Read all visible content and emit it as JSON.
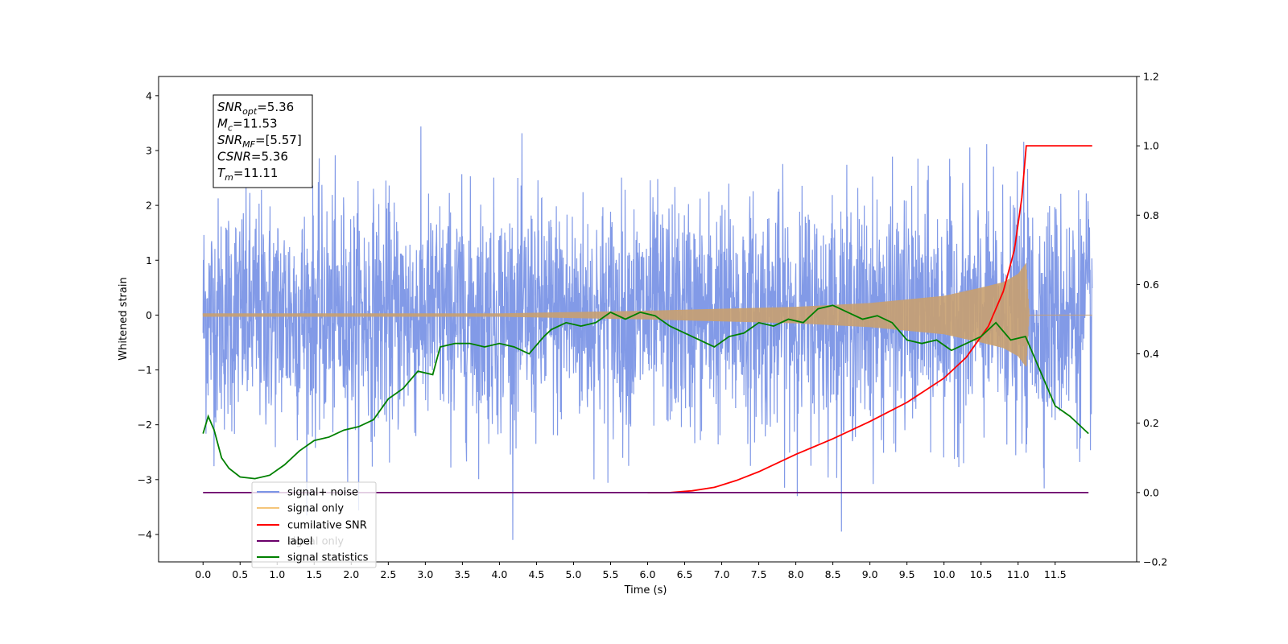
{
  "chart_data": {
    "type": "line",
    "xlabel": "Time (s)",
    "ylabel": "Whitened strain",
    "xlim": [
      -0.6,
      12.6
    ],
    "ylim": [
      -4.5,
      4.35
    ],
    "y2lim": [
      -0.2,
      1.2
    ],
    "x_ticks": [
      "0.0",
      "0.5",
      "1.0",
      "1.5",
      "2.0",
      "2.5",
      "3.0",
      "3.5",
      "4.0",
      "4.5",
      "5.0",
      "5.5",
      "6.0",
      "6.5",
      "7.0",
      "7.5",
      "8.0",
      "8.5",
      "9.0",
      "9.5",
      "10.0",
      "10.5",
      "11.0",
      "11.5"
    ],
    "y_ticks": [
      "4",
      "3",
      "2",
      "1",
      "0",
      "−1",
      "−2",
      "−3",
      "−4"
    ],
    "y2_ticks": [
      "1.2",
      "1.0",
      "0.8",
      "0.6",
      "0.4",
      "0.2",
      "0.0",
      "−0.2"
    ],
    "grid": false,
    "legend_position": "lower-left",
    "legend": [
      {
        "name": "signal+ noise",
        "color": "#7b95e6"
      },
      {
        "name": "signal only",
        "color": "#f5c57a"
      },
      {
        "name": "cumilative SNR",
        "color": "#ff0000"
      },
      {
        "name": "label",
        "color": "#6b006b"
      },
      {
        "name": "signal only",
        "color": "#008000"
      },
      {
        "name": "signal statistics",
        "color": "#008000"
      }
    ],
    "annotation_box": [
      {
        "base": "SNR",
        "sub": "opt",
        "value": "=5.36"
      },
      {
        "base": "M",
        "sub": "c",
        "value": "=11.53"
      },
      {
        "base": "SNR",
        "sub": "MF",
        "value": "=[5.57]"
      },
      {
        "base": "CSNR",
        "sub": "",
        "value": "=5.36"
      },
      {
        "base": "T",
        "sub": "m",
        "value": "=11.11"
      }
    ],
    "series": [
      {
        "name": "signal+ noise",
        "axis": "left",
        "color": "#7b95e6",
        "kind": "noise",
        "x_range": [
          0,
          12.0
        ],
        "approx_std": 1.05
      },
      {
        "name": "signal only",
        "axis": "left",
        "color": "#c8a070",
        "kind": "chirp",
        "merger_time": 11.11,
        "envelope": [
          [
            0,
            0.03
          ],
          [
            4,
            0.03
          ],
          [
            6,
            0.08
          ],
          [
            8,
            0.15
          ],
          [
            9,
            0.22
          ],
          [
            10,
            0.35
          ],
          [
            10.5,
            0.5
          ],
          [
            10.8,
            0.6
          ],
          [
            11.0,
            0.75
          ],
          [
            11.11,
            0.95
          ],
          [
            11.15,
            0.0
          ],
          [
            12.0,
            0.0
          ]
        ]
      },
      {
        "name": "cumilative SNR",
        "axis": "right",
        "color": "#ff0000",
        "x": [
          6.0,
          6.3,
          6.6,
          6.9,
          7.2,
          7.5,
          8.0,
          8.5,
          9.0,
          9.5,
          10.0,
          10.3,
          10.6,
          10.8,
          10.95,
          11.05,
          11.11,
          11.15,
          12.0
        ],
        "y": [
          0.0,
          0.0,
          0.005,
          0.015,
          0.035,
          0.06,
          0.11,
          0.155,
          0.205,
          0.26,
          0.33,
          0.39,
          0.48,
          0.58,
          0.7,
          0.85,
          1.0,
          1.0,
          1.0
        ]
      },
      {
        "name": "label",
        "axis": "right",
        "color": "#6b006b",
        "x": [
          0,
          11.95
        ],
        "y": [
          0.0,
          0.0
        ]
      },
      {
        "name": "signal statistics",
        "axis": "right",
        "color": "#008000",
        "x": [
          0.0,
          0.07,
          0.15,
          0.25,
          0.35,
          0.5,
          0.7,
          0.9,
          1.1,
          1.3,
          1.5,
          1.7,
          1.9,
          2.1,
          2.3,
          2.5,
          2.7,
          2.9,
          3.1,
          3.2,
          3.4,
          3.6,
          3.8,
          4.0,
          4.2,
          4.4,
          4.6,
          4.7,
          4.9,
          5.1,
          5.3,
          5.5,
          5.7,
          5.9,
          6.1,
          6.3,
          6.5,
          6.7,
          6.9,
          7.1,
          7.3,
          7.5,
          7.7,
          7.9,
          8.1,
          8.3,
          8.5,
          8.7,
          8.9,
          9.1,
          9.3,
          9.5,
          9.7,
          9.9,
          10.1,
          10.3,
          10.5,
          10.7,
          10.9,
          11.1,
          11.3,
          11.5,
          11.7,
          11.85,
          11.95
        ],
        "y": [
          0.17,
          0.22,
          0.18,
          0.1,
          0.07,
          0.045,
          0.04,
          0.05,
          0.08,
          0.12,
          0.15,
          0.16,
          0.18,
          0.19,
          0.21,
          0.27,
          0.3,
          0.35,
          0.34,
          0.42,
          0.43,
          0.43,
          0.42,
          0.43,
          0.42,
          0.4,
          0.45,
          0.47,
          0.49,
          0.48,
          0.49,
          0.52,
          0.5,
          0.52,
          0.51,
          0.48,
          0.46,
          0.44,
          0.42,
          0.45,
          0.46,
          0.49,
          0.48,
          0.5,
          0.49,
          0.53,
          0.54,
          0.52,
          0.5,
          0.51,
          0.49,
          0.44,
          0.43,
          0.44,
          0.41,
          0.43,
          0.45,
          0.49,
          0.44,
          0.45,
          0.35,
          0.25,
          0.22,
          0.19,
          0.17
        ]
      }
    ]
  }
}
